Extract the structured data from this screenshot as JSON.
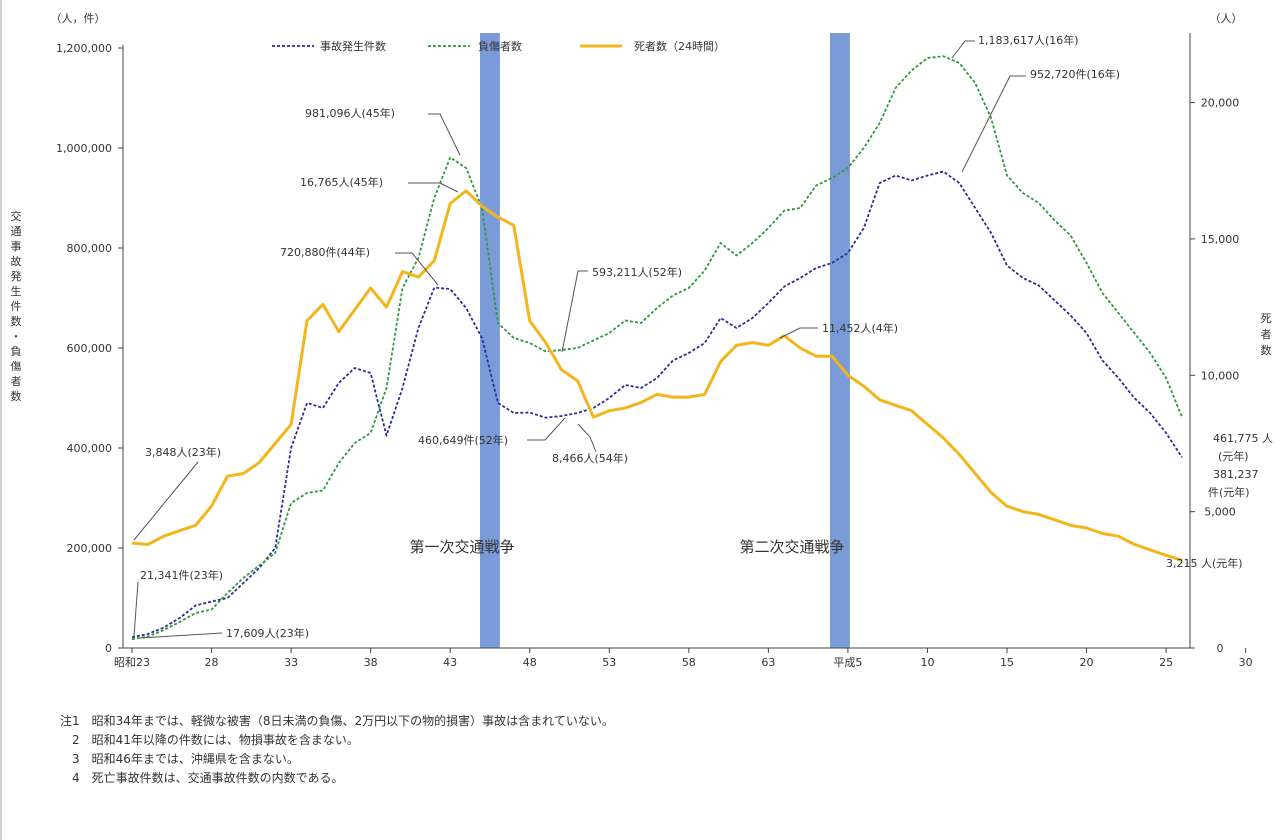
{
  "chart_data": {
    "type": "line",
    "left_axis_unit": "（人，件）",
    "right_axis_unit": "（人）",
    "left_axis_label": "交通事故発生件数・負傷者数",
    "right_axis_label": "死者数",
    "ylim_left": [
      0,
      1200000
    ],
    "ylim_right": [
      0,
      22000
    ],
    "left_ticks": [
      "0",
      "200,000",
      "400,000",
      "600,000",
      "800,000",
      "1,000,000",
      "1,200,000"
    ],
    "right_ticks": [
      "0",
      "5,000",
      "10,000",
      "15,000",
      "20,000"
    ],
    "x_tick_labels": [
      "昭和23",
      "28",
      "33",
      "38",
      "43",
      "48",
      "53",
      "58",
      "63",
      "平成5",
      "10",
      "15",
      "20",
      "25",
      "30"
    ],
    "legend": {
      "accidents": "事故発生件数",
      "injured": "負傷者数",
      "deaths": "死者数（24時間）"
    },
    "colors": {
      "accidents": "#2b2b9a",
      "injured": "#2e9a3a",
      "deaths": "#f2b51c",
      "war_band": "#7b9bd8"
    },
    "wars": [
      {
        "label": "第一次交通戦争",
        "start_index": 22,
        "end_index": 23
      },
      {
        "label": "第二次交通戦争",
        "start_index": 44,
        "end_index": 45
      }
    ],
    "series": [
      {
        "name": "事故発生件数",
        "axis": "left",
        "values": [
          21341,
          28000,
          41000,
          60000,
          85000,
          93000,
          100000,
          130000,
          160000,
          200000,
          400000,
          490000,
          480000,
          530000,
          560000,
          550000,
          425000,
          520000,
          640000,
          720880,
          718000,
          680000,
          620000,
          490000,
          470000,
          471000,
          460649,
          464000,
          470000,
          480000,
          500000,
          526000,
          520000,
          540000,
          575000,
          590000,
          610000,
          660000,
          640000,
          660000,
          690000,
          723000,
          740000,
          760000,
          770000,
          790000,
          840000,
          930000,
          945000,
          935000,
          945000,
          952720,
          930000,
          880000,
          830000,
          765000,
          740000,
          725000,
          695000,
          665000,
          630000,
          575000,
          540000,
          500000,
          470000,
          430000,
          381237
        ]
      },
      {
        "name": "負傷者数",
        "axis": "left",
        "values": [
          17609,
          23000,
          36000,
          52000,
          70000,
          77000,
          110000,
          140000,
          165000,
          190000,
          290000,
          310000,
          315000,
          370000,
          410000,
          430000,
          520000,
          720000,
          780000,
          900000,
          981096,
          960000,
          880000,
          650000,
          620000,
          610000,
          593211,
          596000,
          600000,
          615000,
          630000,
          655000,
          650000,
          680000,
          705000,
          720000,
          755000,
          810000,
          785000,
          810000,
          840000,
          875000,
          880000,
          925000,
          940000,
          960000,
          1000000,
          1050000,
          1120000,
          1155000,
          1180000,
          1183617,
          1170000,
          1130000,
          1060000,
          945000,
          910000,
          890000,
          855000,
          825000,
          770000,
          710000,
          670000,
          630000,
          590000,
          540000,
          461775
        ]
      },
      {
        "name": "死者数（24時間）",
        "axis": "right",
        "values": [
          3848,
          3800,
          4100,
          4300,
          4500,
          5200,
          6300,
          6400,
          6800,
          7500,
          8200,
          12000,
          12600,
          11600,
          12400,
          13200,
          12500,
          13800,
          13600,
          14200,
          16300,
          16765,
          16200,
          15800,
          15500,
          12000,
          11200,
          10200,
          9800,
          8466,
          8700,
          8800,
          9000,
          9300,
          9200,
          9200,
          9300,
          10500,
          11100,
          11200,
          11100,
          11452,
          11000,
          10700,
          10700,
          10000,
          9600,
          9100,
          8900,
          8700,
          8200,
          7700,
          7100,
          6400,
          5700,
          5200,
          5000,
          4900,
          4700,
          4500,
          4400,
          4200,
          4100,
          3800,
          3600,
          3400,
          3215
        ]
      }
    ],
    "annotations": [
      {
        "text": "1,183,617人(16年)"
      },
      {
        "text": "952,720件(16年)"
      },
      {
        "text": "981,096人(45年)"
      },
      {
        "text": "16,765人(45年)"
      },
      {
        "text": "720,880件(44年)"
      },
      {
        "text": "593,211人(52年)"
      },
      {
        "text": "11,452人(4年)"
      },
      {
        "text": "460,649件(52年)"
      },
      {
        "text": "8,466人(54年)"
      },
      {
        "text": "3,848人(23年)"
      },
      {
        "text": "21,341件(23年)"
      },
      {
        "text": "17,609人(23年)"
      },
      {
        "text": "461,775 人"
      },
      {
        "text": "(元年)"
      },
      {
        "text": "381,237"
      },
      {
        "text": "件(元年)"
      },
      {
        "text": "3,215 人(元年)"
      }
    ]
  },
  "notes": [
    "注1　昭和34年までは、軽微な被害（8日未満の負傷、2万円以下の物的損害）事故は含まれていない。",
    "　2　昭和41年以降の件数には、物損事故を含まない。",
    "　3　昭和46年までは、沖縄県を含まない。",
    "　4　死亡事故件数は、交通事故件数の内数である。"
  ]
}
